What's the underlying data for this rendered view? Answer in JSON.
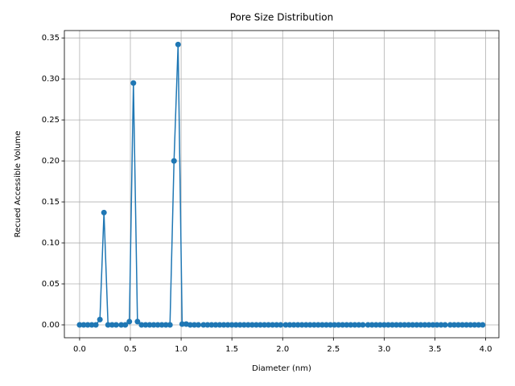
{
  "chart_data": {
    "type": "line",
    "title": "Pore Size Distribution",
    "x_label": "Diameter (nm)",
    "y_label": "Recued Accessible Volume",
    "x": [
      0,
      0.04,
      0.08,
      0.12,
      0.16,
      0.2,
      0.24,
      0.28,
      0.32,
      0.36,
      0.41,
      0.45,
      0.49,
      0.53,
      0.57,
      0.61,
      0.65,
      0.69,
      0.73,
      0.77,
      0.81,
      0.85,
      0.89,
      0.93,
      0.97,
      1.01,
      1.05,
      1.09,
      1.13,
      1.17,
      1.22,
      1.26,
      1.3,
      1.34,
      1.38,
      1.42,
      1.46,
      1.5,
      1.54,
      1.58,
      1.62,
      1.66,
      1.7,
      1.74,
      1.78,
      1.82,
      1.86,
      1.9,
      1.94,
      1.98,
      2.03,
      2.07,
      2.11,
      2.15,
      2.19,
      2.23,
      2.27,
      2.31,
      2.35,
      2.39,
      2.43,
      2.47,
      2.51,
      2.55,
      2.59,
      2.63,
      2.67,
      2.71,
      2.75,
      2.79,
      2.84,
      2.88,
      2.92,
      2.96,
      3,
      3.04,
      3.08,
      3.12,
      3.16,
      3.2,
      3.24,
      3.28,
      3.32,
      3.36,
      3.4,
      3.44,
      3.48,
      3.52,
      3.56,
      3.6,
      3.65,
      3.69,
      3.73,
      3.77,
      3.81,
      3.85,
      3.89,
      3.93,
      3.97
    ],
    "series": [
      {
        "color": "#1f77b4",
        "values": [
          0,
          0,
          0,
          0,
          0,
          0.0065,
          0.137,
          0,
          0,
          0,
          0,
          0,
          0.004,
          0.295,
          0.004,
          0,
          0,
          0,
          0,
          0,
          0,
          0,
          0,
          0.2,
          0.342,
          0.001,
          0.001,
          0,
          0,
          0,
          0,
          0,
          0,
          0,
          0,
          0,
          0,
          0,
          0,
          0,
          0,
          0,
          0,
          0,
          0,
          0,
          0,
          0,
          0,
          0,
          0,
          0,
          0,
          0,
          0,
          0,
          0,
          0,
          0,
          0,
          0,
          0,
          0,
          0,
          0,
          0,
          0,
          0,
          0,
          0,
          0,
          0,
          0,
          0,
          0,
          0,
          0,
          0,
          0,
          0,
          0,
          0,
          0,
          0,
          0,
          0,
          0,
          0,
          0,
          0,
          0,
          0,
          0,
          0,
          0,
          0,
          0,
          0,
          0
        ]
      }
    ],
    "xlim": [
      -0.15,
      4.13
    ],
    "ylim": [
      -0.0157,
      0.359
    ],
    "xticks": [
      {
        "value": 0,
        "label": "0.0"
      },
      {
        "value": 0.5,
        "label": "0.5"
      },
      {
        "value": 1,
        "label": "1.0"
      },
      {
        "value": 1.5,
        "label": "1.5"
      },
      {
        "value": 2,
        "label": "2.0"
      },
      {
        "value": 2.5,
        "label": "2.5"
      },
      {
        "value": 3,
        "label": "3.0"
      },
      {
        "value": 3.5,
        "label": "3.5"
      },
      {
        "value": 4,
        "label": "4.0"
      }
    ],
    "yticks": [
      {
        "value": 0,
        "label": "0.00"
      },
      {
        "value": 0.05,
        "label": "0.05"
      },
      {
        "value": 0.1,
        "label": "0.10"
      },
      {
        "value": 0.15,
        "label": "0.15"
      },
      {
        "value": 0.2,
        "label": "0.20"
      },
      {
        "value": 0.25,
        "label": "0.25"
      },
      {
        "value": 0.3,
        "label": "0.30"
      },
      {
        "value": 0.35,
        "label": "0.35"
      }
    ],
    "grid": true
  }
}
